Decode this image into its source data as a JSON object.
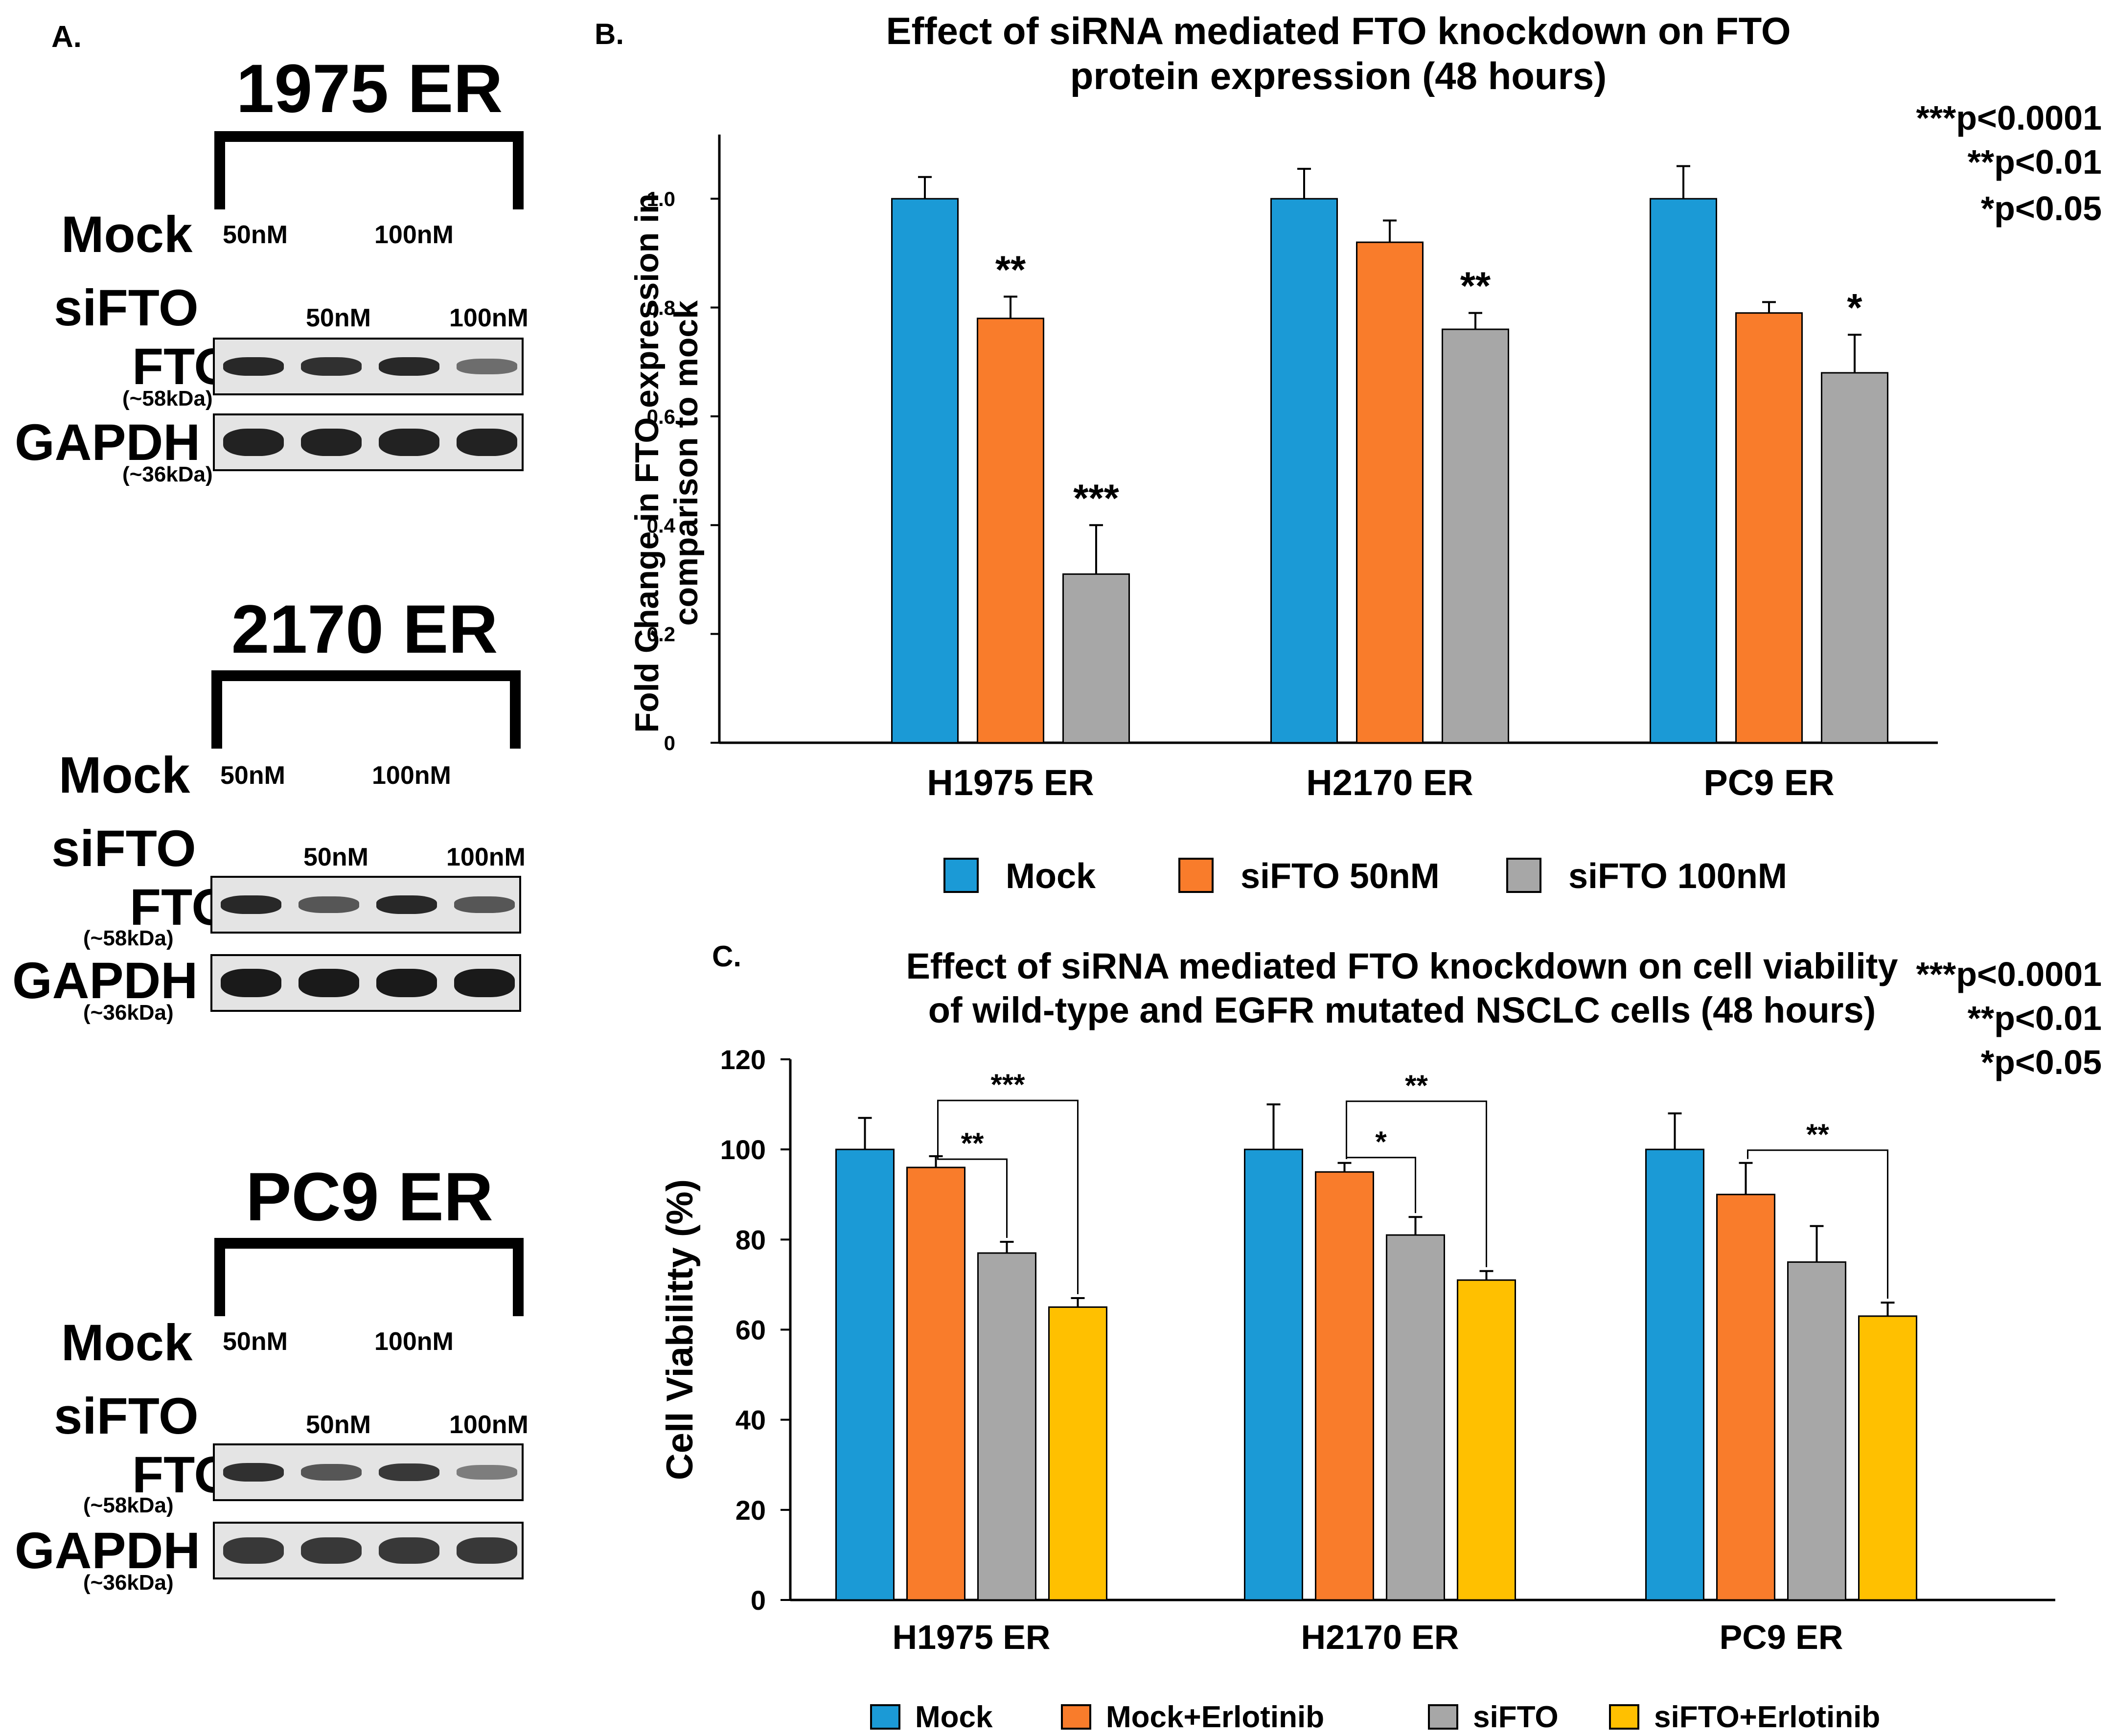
{
  "panel_a": {
    "letter": "A.",
    "blots": [
      {
        "title": "1975 ER",
        "mock_label": "Mock",
        "mock_conc_1": "50nM",
        "mock_conc_2": "100nM",
        "sifto_label": "siFTO",
        "sifto_conc_1": "50nM",
        "sifto_conc_2": "100nM",
        "fto_label": "FTO",
        "fto_kda": "(~58kDa)",
        "gapdh_label": "GAPDH",
        "gapdh_kda": "(~36kDa)",
        "fto_band_intensity": [
          0.9,
          0.85,
          0.9,
          0.45
        ],
        "gapdh_band_intensity": [
          0.95,
          0.95,
          0.95,
          0.95
        ]
      },
      {
        "title": "2170 ER",
        "mock_label": "Mock",
        "mock_conc_1": "50nM",
        "mock_conc_2": "100nM",
        "sifto_label": "siFTO",
        "sifto_conc_1": "50nM",
        "sifto_conc_2": "100nM",
        "fto_label": "FTO",
        "fto_kda": "(~58kDa)",
        "gapdh_label": "GAPDH",
        "gapdh_kda": "(~36kDa)",
        "fto_band_intensity": [
          0.9,
          0.6,
          0.9,
          0.6
        ],
        "gapdh_band_intensity": [
          1.0,
          1.0,
          1.0,
          1.0
        ]
      },
      {
        "title": "PC9 ER",
        "mock_label": "Mock",
        "mock_conc_1": "50nM",
        "mock_conc_2": "100nM",
        "sifto_label": "siFTO",
        "sifto_conc_1": "50nM",
        "sifto_conc_2": "100nM",
        "fto_label": "FTO",
        "fto_kda": "(~58kDa)",
        "gapdh_label": "GAPDH",
        "gapdh_kda": "(~36kDa)",
        "fto_band_intensity": [
          0.85,
          0.6,
          0.8,
          0.35
        ],
        "gapdh_band_intensity": [
          0.8,
          0.8,
          0.8,
          0.8
        ]
      }
    ]
  },
  "chart_data": [
    {
      "panel": "B.",
      "type": "bar",
      "title_line1": "Effect of siRNA mediated FTO knockdown on FTO",
      "title_line2": "protein expression (48 hours)",
      "ylabel_line1": "Fold Change in FTO expression in",
      "ylabel_line2": "comparison to mock",
      "xlabel": "",
      "categories": [
        "H1975 ER",
        "H2170 ER",
        "PC9 ER"
      ],
      "ylim": [
        0,
        1.1
      ],
      "yticks": [
        "0",
        "0.2",
        "0.4",
        "0.6",
        "0.8",
        "1.0"
      ],
      "series": [
        {
          "name": "Mock",
          "color": "#1b9ad6",
          "values": [
            1.0,
            1.0,
            1.0
          ],
          "errors": [
            0.04,
            0.055,
            0.06
          ],
          "sig": [
            "",
            "",
            ""
          ]
        },
        {
          "name": "siFTO 50nM",
          "color": "#f97c2b",
          "values": [
            0.78,
            0.92,
            0.79
          ],
          "errors": [
            0.04,
            0.04,
            0.02
          ],
          "sig": [
            "**",
            "",
            ""
          ]
        },
        {
          "name": "siFTO 100nM",
          "color": "#a7a7a7",
          "values": [
            0.31,
            0.76,
            0.68
          ],
          "errors": [
            0.09,
            0.03,
            0.07
          ],
          "sig": [
            "***",
            "**",
            "*"
          ]
        }
      ],
      "pvalues": [
        "***p<0.0001",
        "**p<0.01",
        "*p<0.05"
      ],
      "legend_position": "bottom"
    },
    {
      "panel": "C.",
      "type": "bar",
      "title_line1": "Effect of siRNA mediated FTO knockdown on cell viability",
      "title_line2": "of wild-type and EGFR mutated NSCLC cells (48 hours)",
      "ylabel": "Cell Viabilitty (%)",
      "xlabel": "",
      "categories": [
        "H1975 ER",
        "H2170 ER",
        "PC9 ER"
      ],
      "ylim": [
        0,
        120
      ],
      "yticks": [
        "0",
        "20",
        "40",
        "60",
        "80",
        "100",
        "120"
      ],
      "series": [
        {
          "name": "Mock",
          "color": "#1b9ad6",
          "values": [
            100,
            100,
            100
          ],
          "errors": [
            7,
            10,
            8
          ]
        },
        {
          "name": "Mock+Erlotinib",
          "color": "#f97c2b",
          "values": [
            96,
            95,
            90
          ],
          "errors": [
            2.5,
            2,
            7
          ]
        },
        {
          "name": "siFTO",
          "color": "#a7a7a7",
          "values": [
            77,
            81,
            75
          ],
          "errors": [
            2.5,
            4,
            8
          ]
        },
        {
          "name": "siFTO+Erlotinib",
          "color": "#ffc000",
          "values": [
            65,
            71,
            63
          ],
          "errors": [
            2,
            2,
            3
          ]
        }
      ],
      "brackets": [
        {
          "group": 0,
          "from": 1,
          "to": 2,
          "label": "**"
        },
        {
          "group": 0,
          "from": 1,
          "to": 3,
          "label": "***"
        },
        {
          "group": 1,
          "from": 1,
          "to": 2,
          "label": "*"
        },
        {
          "group": 1,
          "from": 1,
          "to": 3,
          "label": "**"
        },
        {
          "group": 2,
          "from": 1,
          "to": 3,
          "label": "**"
        }
      ],
      "pvalues": [
        "***p<0.0001",
        "**p<0.01",
        "*p<0.05"
      ],
      "legend_position": "bottom"
    }
  ]
}
